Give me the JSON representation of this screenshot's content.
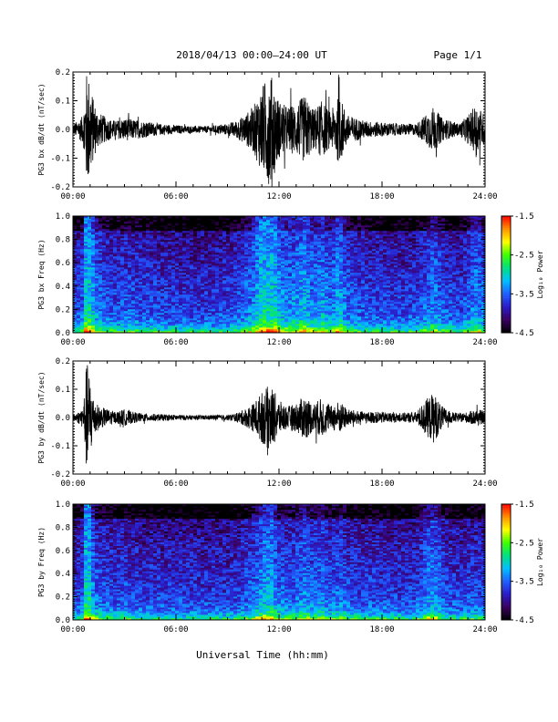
{
  "header": {
    "title": "2018/04/13  00:00–24:00 UT",
    "page": "Page 1/1"
  },
  "footer": {
    "xlabel": "Universal Time (hh:mm)"
  },
  "colormap_colors": [
    "#000000",
    "#3a0060",
    "#2a1cc8",
    "#2060ff",
    "#00c0ff",
    "#00e080",
    "#40ff00",
    "#ffff00",
    "#ff9000",
    "#ff0000"
  ],
  "trace_color": "#000000",
  "chart_data": [
    {
      "type": "line",
      "ylabel": "PG3 bx dB/dt (nT/sec)",
      "x_ticks": [
        "00:00",
        "06:00",
        "12:00",
        "18:00",
        "24:00"
      ],
      "xlim": [
        0,
        24
      ],
      "ylim": [
        -0.2,
        0.2
      ],
      "y_ticks": [
        "-0.2",
        "-0.1",
        "0.0",
        "0.1",
        "0.2"
      ],
      "x_units": "hours UT",
      "envelope": {
        "x": [
          0,
          0.3,
          0.6,
          0.8,
          1.0,
          1.2,
          1.5,
          2,
          2.5,
          3,
          3.5,
          4,
          5,
          6,
          7,
          8,
          9,
          9.5,
          10,
          10.5,
          11,
          11.5,
          12,
          12.5,
          13,
          13.5,
          14,
          14.5,
          15,
          15.5,
          16,
          17,
          18,
          19,
          20,
          20.5,
          21,
          21.5,
          22,
          22.5,
          23,
          23.5,
          24
        ],
        "amplitude": [
          0.02,
          0.03,
          0.05,
          0.2,
          0.18,
          0.1,
          0.06,
          0.04,
          0.03,
          0.04,
          0.035,
          0.03,
          0.02,
          0.015,
          0.012,
          0.012,
          0.02,
          0.03,
          0.05,
          0.08,
          0.15,
          0.2,
          0.1,
          0.08,
          0.09,
          0.12,
          0.07,
          0.1,
          0.06,
          0.12,
          0.05,
          0.03,
          0.025,
          0.02,
          0.02,
          0.05,
          0.08,
          0.04,
          0.03,
          0.02,
          0.05,
          0.09,
          0.05
        ]
      }
    },
    {
      "type": "heatmap",
      "ylabel": "PG3 bx Freq (Hz)",
      "x_ticks": [
        "00:00",
        "06:00",
        "12:00",
        "18:00",
        "24:00"
      ],
      "xlim": [
        0,
        24
      ],
      "ylim": [
        0,
        1.0
      ],
      "y_ticks": [
        "0.0",
        "0.2",
        "0.4",
        "0.6",
        "0.8",
        "1.0"
      ],
      "colorbar": {
        "label": "Log₁₀ Power",
        "range": [
          -4.5,
          -1.5
        ],
        "ticks": [
          "-1.5",
          "-2.5",
          "-3.5",
          "-4.5"
        ]
      }
    },
    {
      "type": "line",
      "ylabel": "PG3 by dB/dt (nT/sec)",
      "x_ticks": [
        "00:00",
        "06:00",
        "12:00",
        "18:00",
        "24:00"
      ],
      "xlim": [
        0,
        24
      ],
      "ylim": [
        -0.2,
        0.2
      ],
      "y_ticks": [
        "-0.2",
        "-0.1",
        "0.0",
        "0.1",
        "0.2"
      ],
      "x_units": "hours UT",
      "envelope": {
        "x": [
          0,
          0.3,
          0.6,
          0.8,
          1.0,
          1.2,
          1.5,
          2,
          2.5,
          3,
          3.5,
          4,
          5,
          6,
          7,
          8,
          9,
          9.5,
          10,
          10.5,
          11,
          11.5,
          12,
          12.5,
          13,
          13.5,
          14,
          14.5,
          15,
          15.5,
          16,
          17,
          18,
          19,
          20,
          20.5,
          21,
          21.5,
          22,
          22.5,
          23,
          23.5,
          24
        ],
        "amplitude": [
          0.01,
          0.02,
          0.04,
          0.2,
          0.15,
          0.07,
          0.04,
          0.03,
          0.02,
          0.03,
          0.02,
          0.015,
          0.012,
          0.01,
          0.008,
          0.008,
          0.01,
          0.015,
          0.03,
          0.05,
          0.09,
          0.12,
          0.06,
          0.04,
          0.05,
          0.08,
          0.05,
          0.07,
          0.04,
          0.06,
          0.03,
          0.02,
          0.02,
          0.015,
          0.02,
          0.06,
          0.09,
          0.04,
          0.02,
          0.015,
          0.02,
          0.03,
          0.02
        ]
      }
    },
    {
      "type": "heatmap",
      "ylabel": "PG3 by Freq (Hz)",
      "x_ticks": [
        "00:00",
        "06:00",
        "12:00",
        "18:00",
        "24:00"
      ],
      "xlim": [
        0,
        24
      ],
      "ylim": [
        0,
        1.0
      ],
      "y_ticks": [
        "0.0",
        "0.2",
        "0.4",
        "0.6",
        "0.8",
        "1.0"
      ],
      "colorbar": {
        "label": "Log₁₀ Power",
        "range": [
          -4.5,
          -1.5
        ],
        "ticks": [
          "-1.5",
          "-2.5",
          "-3.5",
          "-4.5"
        ]
      }
    }
  ]
}
